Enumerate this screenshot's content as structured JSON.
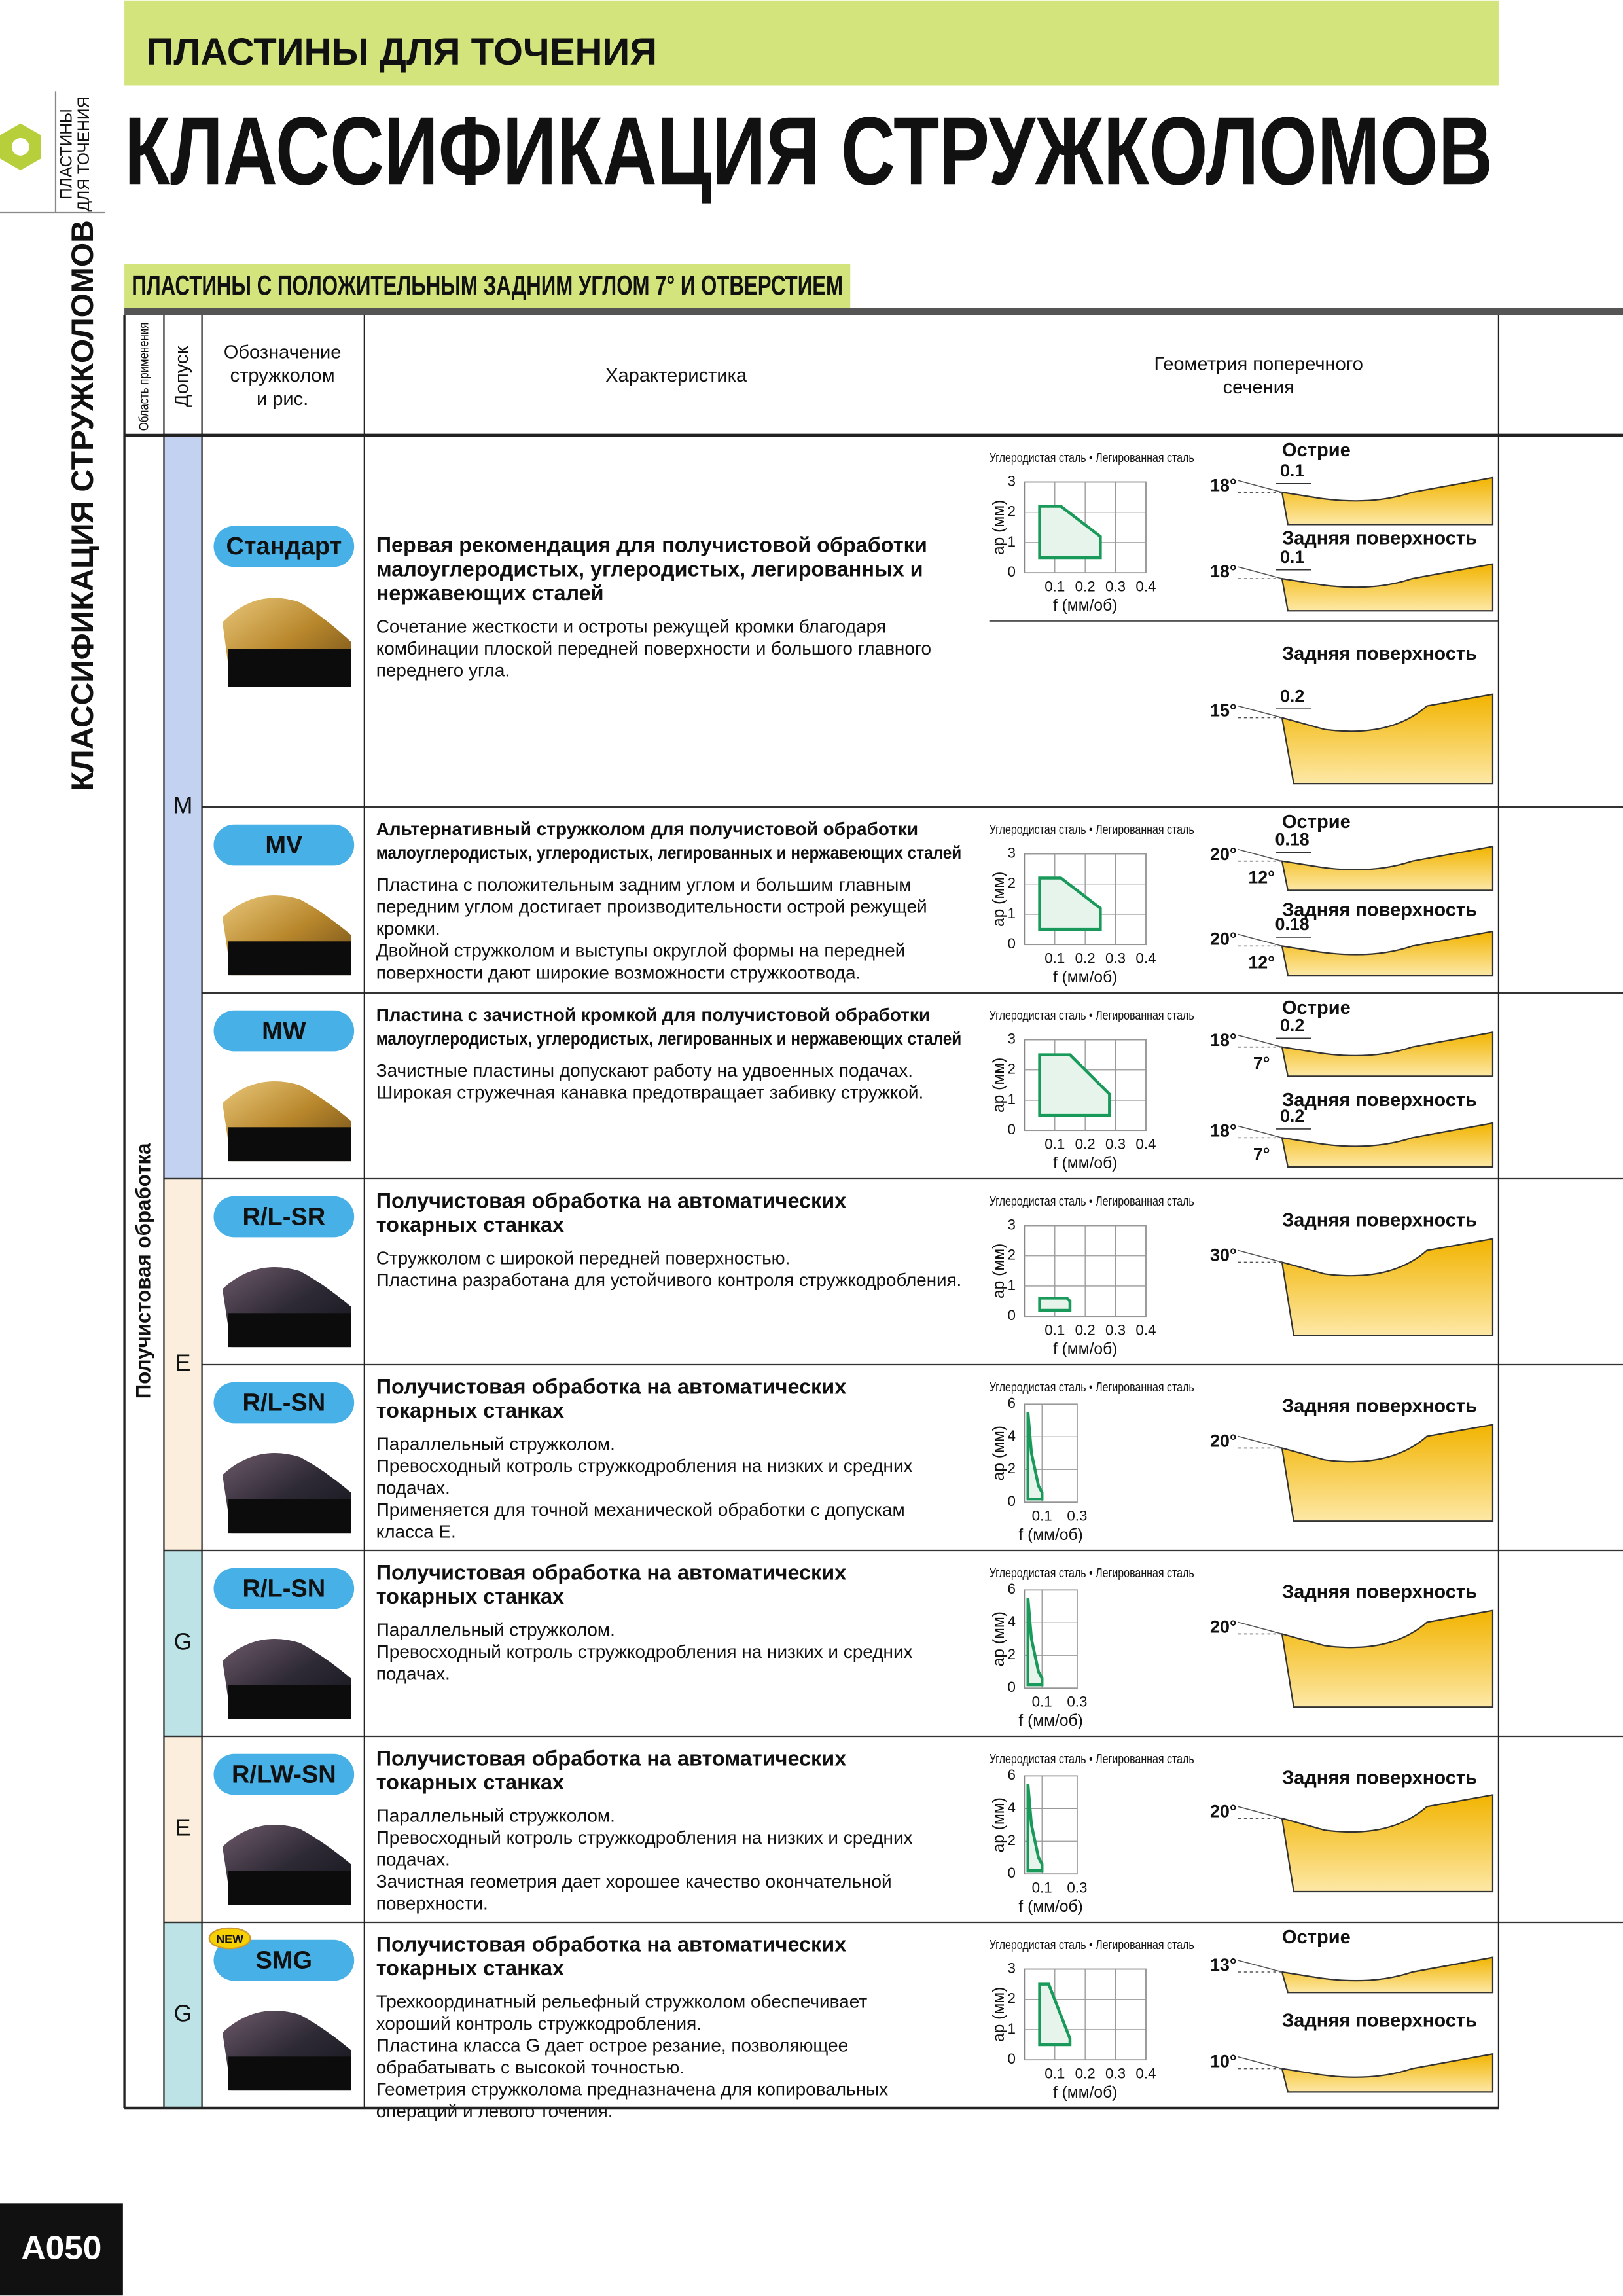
{
  "header": {
    "section": "ПЛАСТИНЫ ДЛЯ ТОЧЕНИЯ",
    "title": "КЛАССИФИКАЦИЯ СТРУЖКОЛОМОВ",
    "side_tab": [
      "ПЛАСТИНЫ",
      "ДЛЯ ТОЧЕНИЯ"
    ],
    "side_title": "КЛАССИФИКАЦИЯ СТРУЖКОЛОМОВ"
  },
  "subtitle": "ПЛАСТИНЫ С ПОЛОЖИТЕЛЬНЫМ ЗАДНИМ УГЛОМ 7° И ОТВЕРСТИЕМ",
  "table": {
    "headers": {
      "application": "Область применения",
      "tolerance": "Допуск",
      "designation": [
        "Обозначение",
        "стружколом",
        "и рис."
      ],
      "characteristic": "Характеристика",
      "geometry": [
        "Геометрия поперечного",
        "сечения"
      ]
    },
    "application": "Получистовая обработка",
    "rows": [
      {
        "tolerance": "M",
        "tolerance_color": "#c3d2f0",
        "name": "Стандарт",
        "heading": [
          "Первая рекомендация для получистовой обработки",
          "малоуглеродистых, углеродистых, легированных и",
          "нержавеющих сталей"
        ],
        "description": [
          "Сочетание жесткости и остроты режущей кромки  благодаря",
          "комбинации плоской передней поверхности и большого главного",
          "переднего угла."
        ],
        "chart": {
          "title": "Углеродистая сталь • Легированная сталь",
          "ylabel": "ap (мм)",
          "xlabel": "f (мм/об)",
          "xlim": [
            0,
            0.4
          ],
          "ylim": [
            0,
            3
          ],
          "xticks": [
            0.1,
            0.2,
            0.3,
            0.4
          ],
          "yticks": [
            0,
            1,
            2,
            3
          ],
          "region": [
            [
              0.05,
              0.5
            ],
            [
              0.05,
              2.2
            ],
            [
              0.12,
              2.2
            ],
            [
              0.25,
              1.2
            ],
            [
              0.25,
              0.5
            ]
          ]
        },
        "geometry": [
          {
            "label": "Острие",
            "angle": "18°",
            "width": "0.1"
          },
          {
            "label": "Задняя поверхность",
            "angle": "18°",
            "width": "0.1"
          },
          {
            "label": "Задняя поверхность",
            "angle": "15°",
            "width": "0.2"
          }
        ]
      },
      {
        "tolerance": null,
        "name": "MV",
        "heading": [
          "Альтернативный стружколом для получистовой обработки",
          "малоуглеродистых, углеродистых, легированных и нержавеющих сталей"
        ],
        "description": [
          "Пластина с положительным задним углом и большим главным",
          "передним углом достигает производительности острой режущей",
          "кромки.",
          "Двойной стружколом и выступы округлой формы на передней",
          "поверхности дают широкие возможности стружкоотвода."
        ],
        "chart": {
          "title": "Углеродистая сталь • Легированная сталь",
          "ylabel": "ap (мм)",
          "xlabel": "f (мм/об)",
          "xlim": [
            0,
            0.4
          ],
          "ylim": [
            0,
            3
          ],
          "xticks": [
            0.1,
            0.2,
            0.3,
            0.4
          ],
          "yticks": [
            0,
            1,
            2,
            3
          ],
          "region": [
            [
              0.05,
              0.5
            ],
            [
              0.05,
              2.2
            ],
            [
              0.12,
              2.2
            ],
            [
              0.25,
              1.2
            ],
            [
              0.25,
              0.5
            ]
          ]
        },
        "geometry": [
          {
            "label": "Острие",
            "angle": "20°",
            "width": "0.18",
            "land": "12°"
          },
          {
            "label": "Задняя поверхность",
            "angle": "20°",
            "width": "0.18",
            "land": "12°"
          }
        ]
      },
      {
        "tolerance": null,
        "name": "MW",
        "heading": [
          "Пластина с зачистной кромкой для получистовой обработки",
          "малоуглеродистых, углеродистых, легированных и нержавеющих сталей"
        ],
        "description": [
          "Зачистные пластины допускают работу на удвоенных подачах.",
          "Широкая стружечная канавка предотвращает забивку стружкой."
        ],
        "chart": {
          "title": "Углеродистая сталь • Легированная сталь",
          "ylabel": "ap (мм)",
          "xlabel": "f (мм/об)",
          "xlim": [
            0,
            0.4
          ],
          "ylim": [
            0,
            3
          ],
          "xticks": [
            0.1,
            0.2,
            0.3,
            0.4
          ],
          "yticks": [
            0,
            1,
            2,
            3
          ],
          "region": [
            [
              0.05,
              0.5
            ],
            [
              0.05,
              2.5
            ],
            [
              0.15,
              2.5
            ],
            [
              0.28,
              1.2
            ],
            [
              0.28,
              0.5
            ]
          ]
        },
        "geometry": [
          {
            "label": "Острие",
            "angle": "18°",
            "width": "0.2",
            "land": "7°"
          },
          {
            "label": "Задняя поверхность",
            "angle": "18°",
            "width": "0.2",
            "land": "7°"
          }
        ]
      },
      {
        "tolerance": "E",
        "tolerance_color": "#fbeedc",
        "name": "R/L-SR",
        "heading": [
          "Получистовая обработка на автоматических",
          "токарных станках"
        ],
        "description": [
          "Стружколом с широкой передней поверхностью.",
          "Пластина разработана для устойчивого контроля стружкодробления."
        ],
        "chart": {
          "title": "Углеродистая сталь • Легированная сталь",
          "ylabel": "ap (мм)",
          "xlabel": "f (мм/об)",
          "xlim": [
            0,
            0.4
          ],
          "ylim": [
            0,
            3
          ],
          "xticks": [
            0.1,
            0.2,
            0.3,
            0.4
          ],
          "yticks": [
            0,
            1,
            2,
            3
          ],
          "region": [
            [
              0.05,
              0.2
            ],
            [
              0.05,
              0.6
            ],
            [
              0.14,
              0.6
            ],
            [
              0.15,
              0.5
            ],
            [
              0.15,
              0.2
            ]
          ]
        },
        "geometry": [
          {
            "label": "Задняя поверхность",
            "angle": "30°"
          }
        ]
      },
      {
        "tolerance": null,
        "name": "R/L-SN",
        "heading": [
          "Получистовая обработка на автоматических",
          "токарных станках"
        ],
        "description": [
          "Параллельный стружколом.",
          "Превосходный котроль стружкодробления на низких и средних",
          "подачах.",
          "Применяется для точной механической обработки с допускам",
          "класса E."
        ],
        "chart": {
          "title": "Углеродистая сталь • Легированная сталь",
          "ylabel": "ap (мм)",
          "xlabel": "f (мм/об)",
          "xlim": [
            0,
            0.3
          ],
          "ylim": [
            0,
            6
          ],
          "xticks": [
            0.1,
            0.3
          ],
          "yticks": [
            0,
            2,
            4,
            6
          ],
          "region": [
            [
              0.02,
              0.2
            ],
            [
              0.02,
              5.5
            ],
            [
              0.04,
              3
            ],
            [
              0.08,
              1
            ],
            [
              0.1,
              0.6
            ],
            [
              0.1,
              0.2
            ]
          ]
        },
        "geometry": [
          {
            "label": "Задняя поверхность",
            "angle": "20°"
          }
        ]
      },
      {
        "tolerance": "G",
        "tolerance_color": "#bde3e6",
        "name": "R/L-SN",
        "heading": [
          "Получистовая обработка на автоматических",
          "токарных станках"
        ],
        "description": [
          "Параллельный стружколом.",
          "Превосходный котроль стружкодробления на низких и средних",
          "подачах."
        ],
        "chart": {
          "title": "Углеродистая сталь • Легированная сталь",
          "ylabel": "ap (мм)",
          "xlabel": "f (мм/об)",
          "xlim": [
            0,
            0.3
          ],
          "ylim": [
            0,
            6
          ],
          "xticks": [
            0.1,
            0.3
          ],
          "yticks": [
            0,
            2,
            4,
            6
          ],
          "region": [
            [
              0.02,
              0.2
            ],
            [
              0.02,
              5.5
            ],
            [
              0.04,
              3
            ],
            [
              0.08,
              1
            ],
            [
              0.1,
              0.6
            ],
            [
              0.1,
              0.2
            ]
          ]
        },
        "geometry": [
          {
            "label": "Задняя поверхность",
            "angle": "20°"
          }
        ]
      },
      {
        "tolerance": "E",
        "tolerance_color": "#fbeedc",
        "name": "R/LW-SN",
        "heading": [
          "Получистовая обработка на автоматических",
          "токарных станках"
        ],
        "description": [
          "Параллельный стружколом.",
          "Превосходный котроль стружкодробления на низких и средних",
          "подачах.",
          "Зачистная геометрия дает хорошее качество окончательной",
          "поверхности."
        ],
        "chart": {
          "title": "Углеродистая сталь • Легированная сталь",
          "ylabel": "ap (мм)",
          "xlabel": "f (мм/об)",
          "xlim": [
            0,
            0.3
          ],
          "ylim": [
            0,
            6
          ],
          "xticks": [
            0.1,
            0.3
          ],
          "yticks": [
            0,
            2,
            4,
            6
          ],
          "region": [
            [
              0.02,
              0.2
            ],
            [
              0.02,
              5.5
            ],
            [
              0.04,
              3
            ],
            [
              0.08,
              1
            ],
            [
              0.1,
              0.6
            ],
            [
              0.1,
              0.2
            ]
          ]
        },
        "geometry": [
          {
            "label": "Задняя поверхность",
            "angle": "20°"
          }
        ]
      },
      {
        "tolerance": "G",
        "tolerance_color": "#bde3e6",
        "name": "SMG",
        "badge": "NEW",
        "heading": [
          "Получистовая обработка на автоматических",
          "токарных станках"
        ],
        "description": [
          "Трехкоординатный рельефный стружколом обеспечивает",
          "хороший контроль стружкодробления.",
          "Пластина класса G дает острое резание, позволяющее",
          "обрабатывать с высокой точностью.",
          "Геометрия стружколома предназначена для копировальных",
          "операций и левого точения."
        ],
        "chart": {
          "title": "Углеродистая сталь • Легированная сталь",
          "ylabel": "ap (мм)",
          "xlabel": "f (мм/об)",
          "xlim": [
            0,
            0.4
          ],
          "ylim": [
            0,
            3
          ],
          "xticks": [
            0.1,
            0.2,
            0.3,
            0.4
          ],
          "yticks": [
            0,
            1,
            2,
            3
          ],
          "region": [
            [
              0.05,
              0.5
            ],
            [
              0.05,
              2.5
            ],
            [
              0.08,
              2.5
            ],
            [
              0.15,
              0.7
            ],
            [
              0.15,
              0.5
            ]
          ]
        },
        "geometry": [
          {
            "label": "Острие",
            "angle": "13°"
          },
          {
            "label": "Задняя поверхность",
            "angle": "10°"
          }
        ]
      }
    ]
  },
  "page_number": "A050"
}
